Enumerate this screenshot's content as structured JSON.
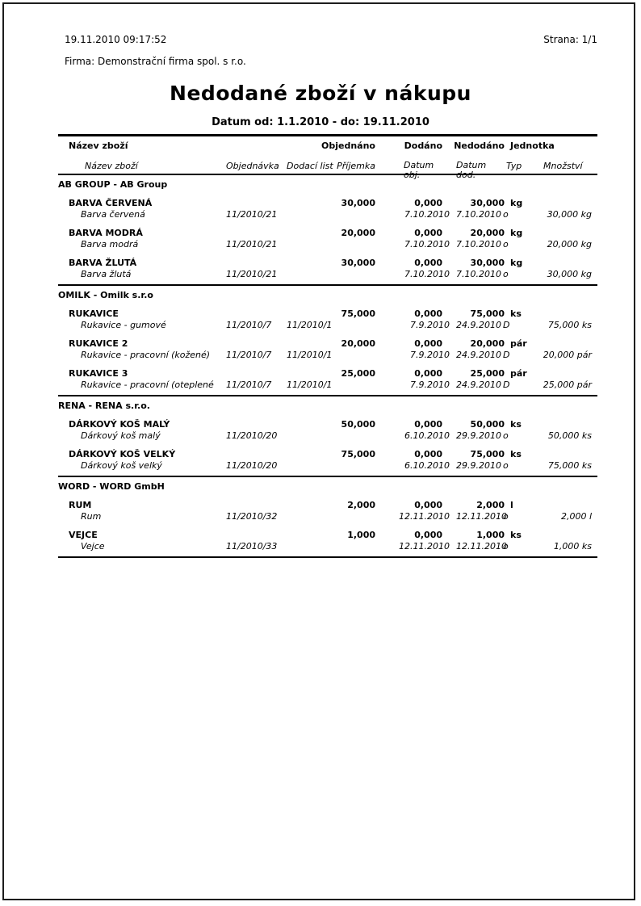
{
  "page": {
    "printed_at": "19.11.2010 09:17:52",
    "page_label": "Strana: 1/1",
    "company": "Firma: Demonstrační firma spol. s r.o.",
    "title": "Nedodané zboží v nákupu",
    "subtitle": "Datum od: 1.1.2010 - do: 19.11.2010"
  },
  "table": {
    "header_row1": {
      "name": "Název zboží",
      "ordered": "Objednáno",
      "delivered": "Dodáno",
      "undelivered": "Nedodáno",
      "unit": "Jednotka"
    },
    "header_row2": {
      "name": "Název zboží",
      "order": "Objednávka",
      "delivery_note": "Dodací list",
      "receipt": "Příjemka",
      "date_ord_line1": "Datum",
      "date_ord_line2": "obj.",
      "date_del_line1": "Datum",
      "date_del_line2": "dod.",
      "typ": "Typ",
      "qty": "Množství"
    },
    "groups": [
      {
        "title": "AB GROUP - AB Group",
        "items": [
          {
            "name": "BARVA ČERVENÁ",
            "desc": "Barva červená",
            "order": "11/2010/21",
            "dnote": "",
            "receipt": "",
            "ordered": "30,000",
            "delivered": "0,000",
            "undelivered": "30,000",
            "unit": "kg",
            "date_ord": "7.10.2010",
            "date_del": "7.10.2010",
            "typ": "o",
            "qty": "30,000 kg"
          },
          {
            "name": "BARVA MODRÁ",
            "desc": "Barva modrá",
            "order": "11/2010/21",
            "dnote": "",
            "receipt": "",
            "ordered": "20,000",
            "delivered": "0,000",
            "undelivered": "20,000",
            "unit": "kg",
            "date_ord": "7.10.2010",
            "date_del": "7.10.2010",
            "typ": "o",
            "qty": "20,000 kg"
          },
          {
            "name": "BARVA ŽLUTÁ",
            "desc": "Barva žlutá",
            "order": "11/2010/21",
            "dnote": "",
            "receipt": "",
            "ordered": "30,000",
            "delivered": "0,000",
            "undelivered": "30,000",
            "unit": "kg",
            "date_ord": "7.10.2010",
            "date_del": "7.10.2010",
            "typ": "o",
            "qty": "30,000 kg"
          }
        ]
      },
      {
        "title": "OMILK - Omilk s.r.o",
        "items": [
          {
            "name": "RUKAVICE",
            "desc": "Rukavice - gumové",
            "order": "11/2010/7",
            "dnote": "11/2010/1",
            "receipt": "",
            "ordered": "75,000",
            "delivered": "0,000",
            "undelivered": "75,000",
            "unit": "ks",
            "date_ord": "7.9.2010",
            "date_del": "24.9.2010",
            "typ": "D",
            "qty": "75,000 ks"
          },
          {
            "name": "RUKAVICE 2",
            "desc": "Rukavice - pracovní (kožené)",
            "order": "11/2010/7",
            "dnote": "11/2010/1",
            "receipt": "",
            "ordered": "20,000",
            "delivered": "0,000",
            "undelivered": "20,000",
            "unit": "pár",
            "date_ord": "7.9.2010",
            "date_del": "24.9.2010",
            "typ": "D",
            "qty": "20,000 pár"
          },
          {
            "name": "RUKAVICE 3",
            "desc": "Rukavice - pracovní (oteplené",
            "order": "11/2010/7",
            "dnote": "11/2010/1",
            "receipt": "",
            "ordered": "25,000",
            "delivered": "0,000",
            "undelivered": "25,000",
            "unit": "pár",
            "date_ord": "7.9.2010",
            "date_del": "24.9.2010",
            "typ": "D",
            "qty": "25,000 pár"
          }
        ]
      },
      {
        "title": "RENA - RENA s.r.o.",
        "items": [
          {
            "name": "DÁRKOVÝ KOŠ MALÝ",
            "desc": "Dárkový koš malý",
            "order": "11/2010/20",
            "dnote": "",
            "receipt": "",
            "ordered": "50,000",
            "delivered": "0,000",
            "undelivered": "50,000",
            "unit": "ks",
            "date_ord": "6.10.2010",
            "date_del": "29.9.2010",
            "typ": "o",
            "qty": "50,000 ks"
          },
          {
            "name": "DÁRKOVÝ KOŠ VELKÝ",
            "desc": "Dárkový koš velký",
            "order": "11/2010/20",
            "dnote": "",
            "receipt": "",
            "ordered": "75,000",
            "delivered": "0,000",
            "undelivered": "75,000",
            "unit": "ks",
            "date_ord": "6.10.2010",
            "date_del": "29.9.2010",
            "typ": "o",
            "qty": "75,000 ks"
          }
        ]
      },
      {
        "title": "WORD - WORD GmbH",
        "items": [
          {
            "name": "RUM",
            "desc": "Rum",
            "order": "11/2010/32",
            "dnote": "",
            "receipt": "",
            "ordered": "2,000",
            "delivered": "0,000",
            "undelivered": "2,000",
            "unit": "l",
            "date_ord": "12.11.2010",
            "date_del": "12.11.2010",
            "typ": "o",
            "qty": "2,000 l"
          },
          {
            "name": "VEJCE",
            "desc": "Vejce",
            "order": "11/2010/33",
            "dnote": "",
            "receipt": "",
            "ordered": "1,000",
            "delivered": "0,000",
            "undelivered": "1,000",
            "unit": "ks",
            "date_ord": "12.11.2010",
            "date_del": "12.11.2010",
            "typ": "o",
            "qty": "1,000 ks"
          }
        ]
      }
    ]
  }
}
